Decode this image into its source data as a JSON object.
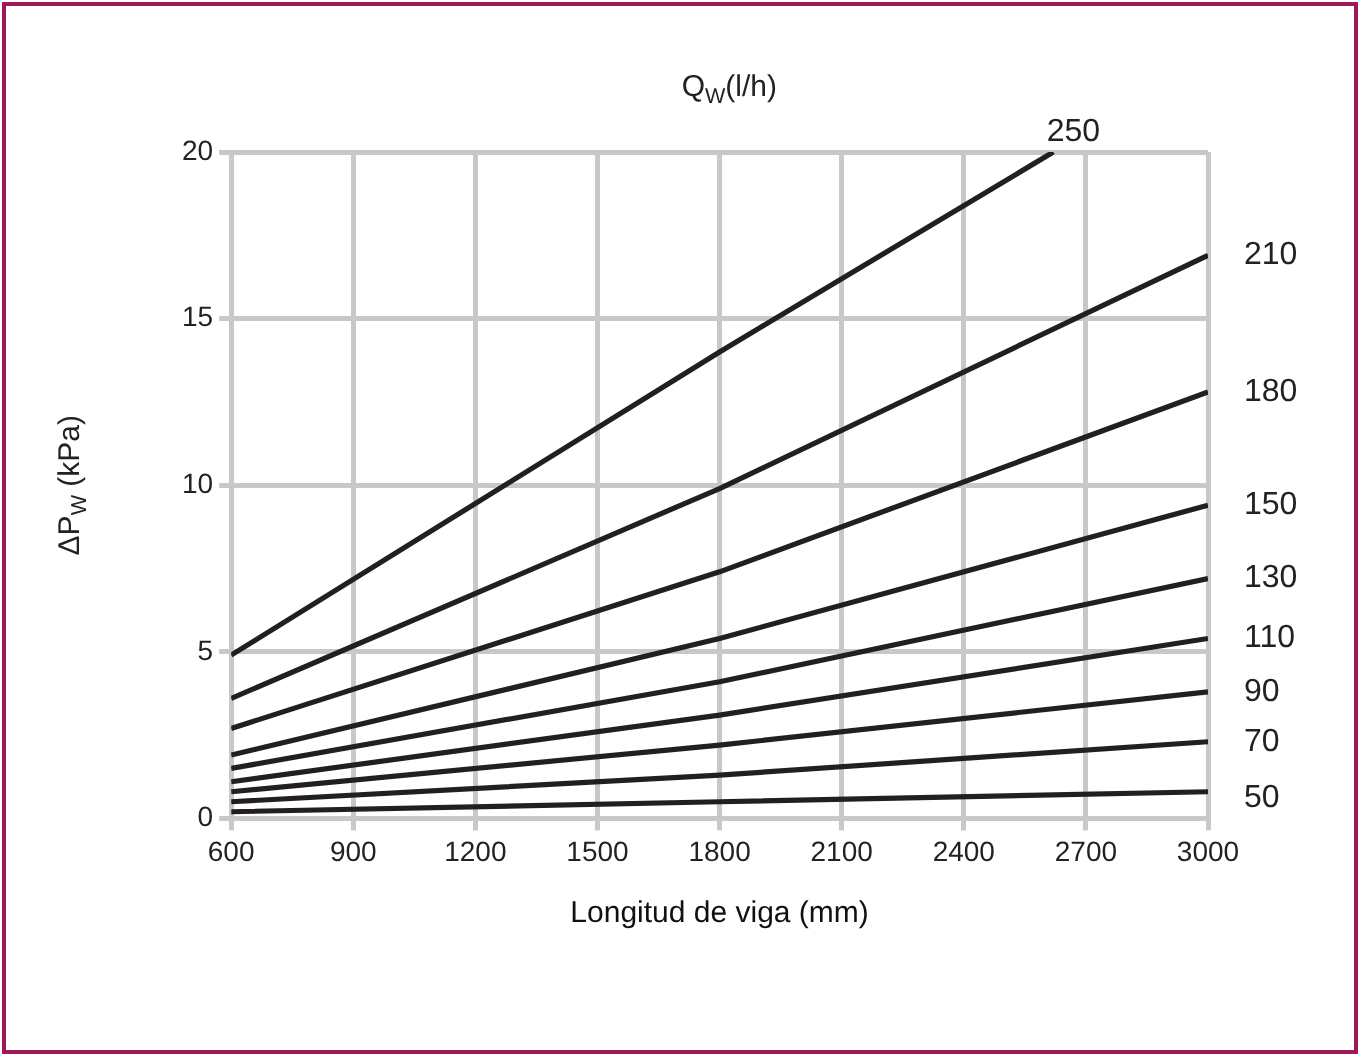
{
  "chart_data": {
    "type": "line",
    "legend_title": "Q$_{W}$(l/h)",
    "xlabel": "Longitud de viga (mm)",
    "ylabel": "ΔP$_{W}$ (kPa)",
    "xlim": [
      600,
      3000
    ],
    "xticks": [
      600,
      900,
      1200,
      1500,
      1800,
      2100,
      2400,
      2700,
      3000
    ],
    "ylim": [
      0,
      20
    ],
    "yticks": [
      0,
      5,
      10,
      15,
      20
    ],
    "grid": true,
    "marker": "none",
    "line_style": "solid",
    "legend": false,
    "x": [
      600,
      1800,
      3000
    ],
    "series": [
      {
        "name": "250",
        "color": "#231f20",
        "x": [
          600,
          1800,
          2620
        ],
        "values": [
          4.9,
          14.0,
          20
        ]
      },
      {
        "name": "210",
        "color": "#231f20",
        "values": [
          3.6,
          9.9,
          16.9
        ]
      },
      {
        "name": "180",
        "color": "#231f20",
        "values": [
          2.7,
          7.4,
          12.8
        ]
      },
      {
        "name": "150",
        "color": "#231f20",
        "values": [
          1.9,
          5.4,
          9.4
        ]
      },
      {
        "name": "130",
        "color": "#231f20",
        "values": [
          1.5,
          4.1,
          7.2
        ]
      },
      {
        "name": "110",
        "color": "#231f20",
        "values": [
          1.1,
          3.1,
          5.4
        ]
      },
      {
        "name": "90",
        "color": "#231f20",
        "values": [
          0.8,
          2.2,
          3.8
        ]
      },
      {
        "name": "70",
        "color": "#231f20",
        "values": [
          0.5,
          1.3,
          2.3
        ]
      },
      {
        "name": "50",
        "color": "#231f20",
        "values": [
          0.2,
          0.5,
          0.8
        ]
      }
    ]
  }
}
